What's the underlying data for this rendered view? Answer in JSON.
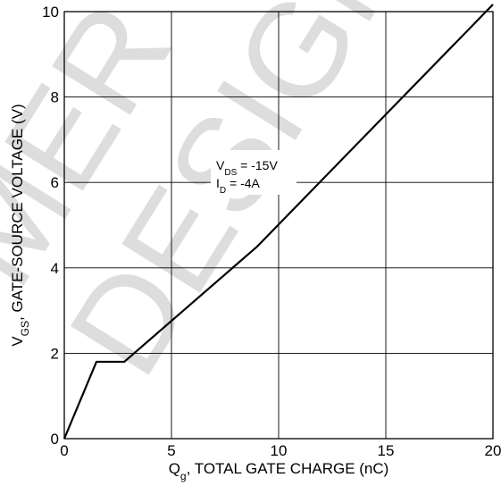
{
  "chart_data": {
    "type": "line",
    "xlabel": {
      "main": "Q",
      "sub": "g",
      "rest": ", TOTAL GATE CHARGE (nC)"
    },
    "ylabel": {
      "main": "V",
      "sub": "GS",
      "rest": ", GATE-SOURCE VOLTAGE (V)"
    },
    "xlim": [
      0,
      20
    ],
    "ylim": [
      0,
      10
    ],
    "x_ticks": [
      0,
      5,
      10,
      15,
      20
    ],
    "y_ticks": [
      0,
      2,
      4,
      6,
      8,
      10
    ],
    "grid": true,
    "series": [
      {
        "x": [
          0,
          1.5,
          2.8,
          9.0,
          20.0
        ],
        "y": [
          0,
          1.8,
          1.8,
          4.5,
          10.3
        ]
      }
    ],
    "annotations": [
      {
        "main": "V",
        "sub": "DS",
        "rest": " = -15V"
      },
      {
        "main": "I",
        "sub": "D",
        "rest": " = -4A"
      }
    ],
    "colors": {
      "line": "#000000",
      "grid": "#000000",
      "background": "#ffffff",
      "watermark": "#000000"
    },
    "watermark": "MERCEDES DESIGN"
  }
}
